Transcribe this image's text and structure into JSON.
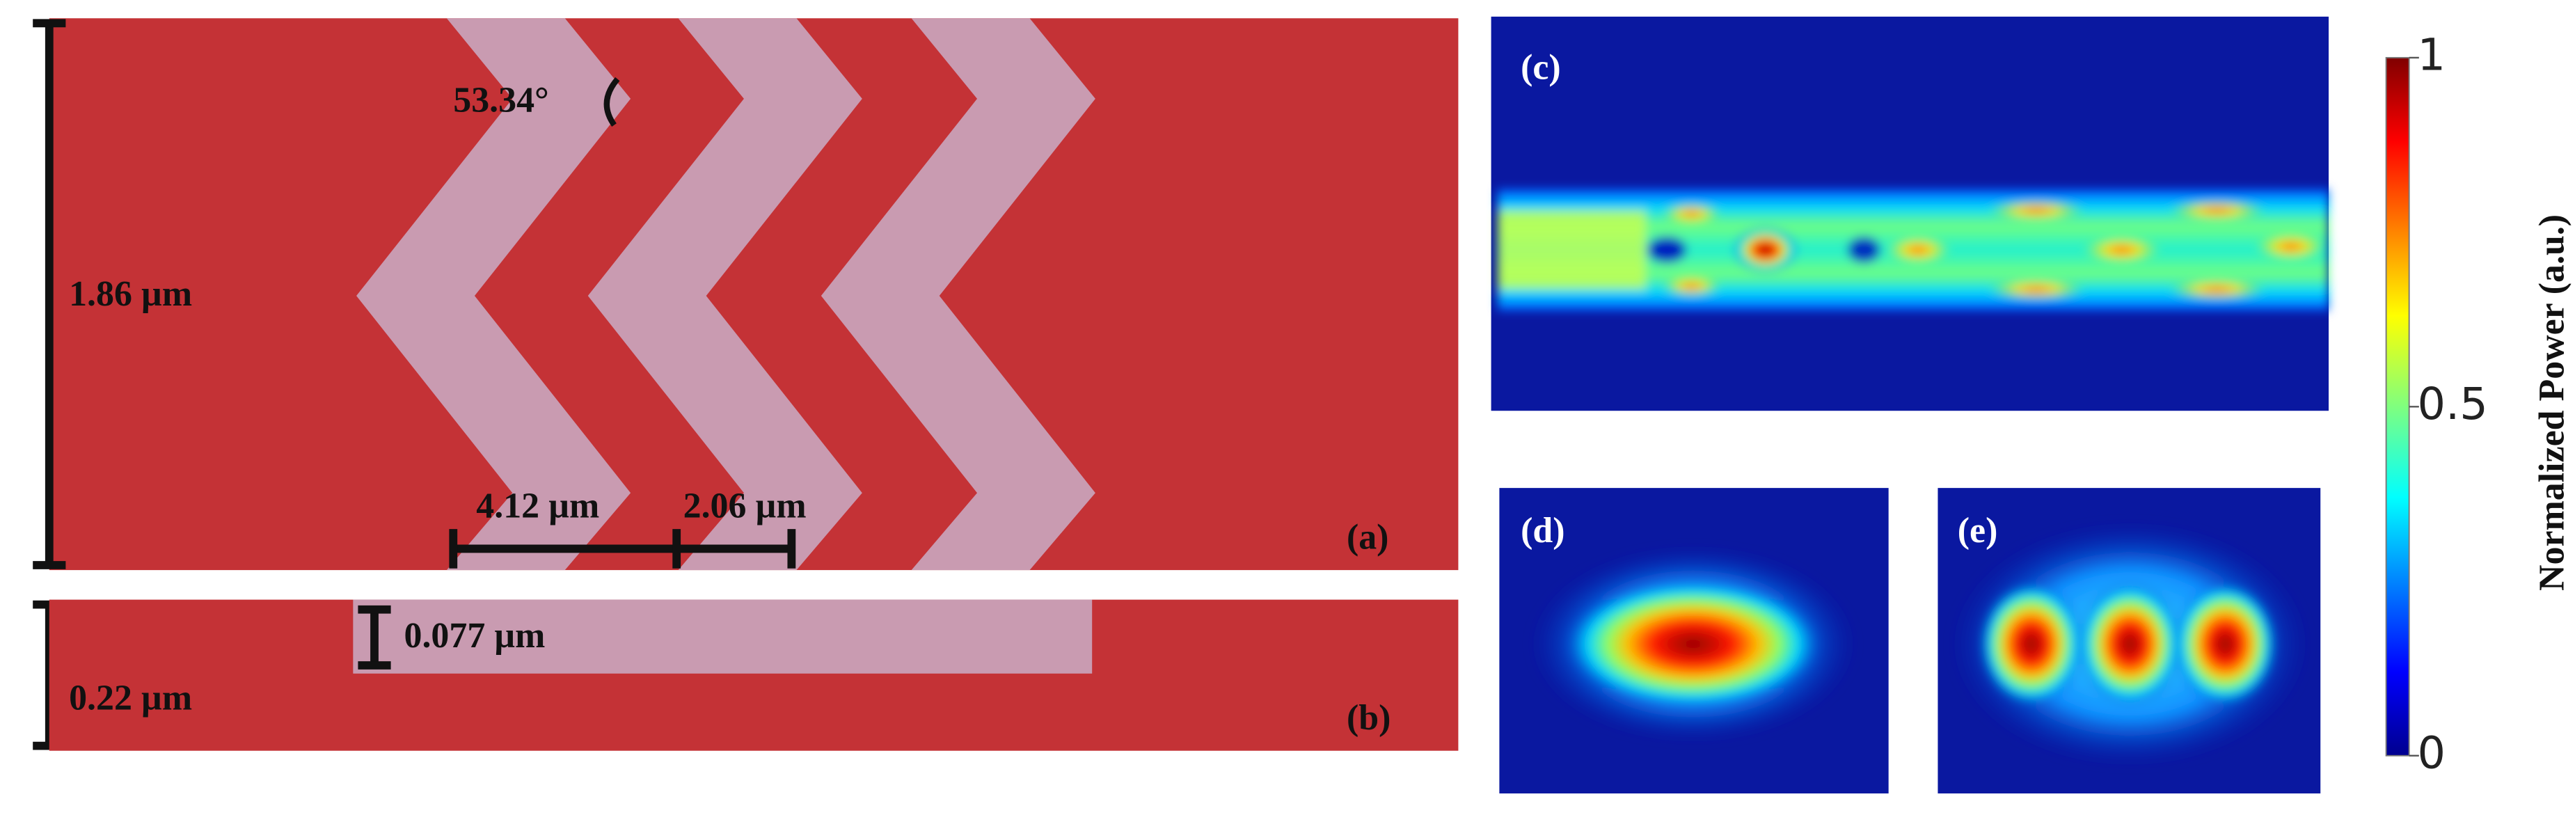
{
  "panels": {
    "a": {
      "label": "(a)",
      "height": "1.86 µm",
      "angle": "53.34°",
      "period": "4.12 µm",
      "width": "2.06 µm"
    },
    "b": {
      "label": "(b)",
      "height": "0.22 µm",
      "depth": "0.077 µm"
    },
    "c": {
      "label": "(c)"
    },
    "d": {
      "label": "(d)"
    },
    "e": {
      "label": "(e)"
    }
  },
  "colorbar": {
    "title": "Normalized Power (a.u.)",
    "range": [
      0,
      1
    ],
    "ticks": [
      1,
      0.5,
      0
    ]
  }
}
